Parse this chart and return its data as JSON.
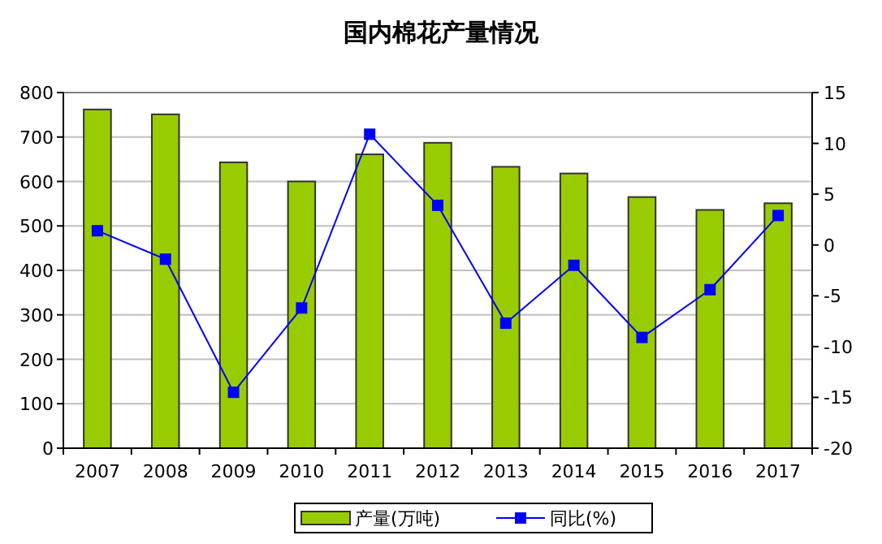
{
  "chart_data": {
    "type": "bar",
    "title": "国内棉花产量情况",
    "categories": [
      "2007",
      "2008",
      "2009",
      "2010",
      "2011",
      "2012",
      "2013",
      "2014",
      "2015",
      "2016",
      "2017"
    ],
    "series": [
      {
        "name": "产量(万吨)",
        "color": "#99cc00",
        "values": [
          762,
          751,
          643,
          600,
          661,
          687,
          633,
          618,
          565,
          536,
          551
        ]
      },
      {
        "name": "同比(%)",
        "type": "line",
        "axis": "y2",
        "color": "#0000ff",
        "marker": "square",
        "values": [
          1.4,
          -1.4,
          -14.5,
          -6.2,
          10.9,
          3.9,
          -7.7,
          -2.0,
          -9.1,
          -4.4,
          2.9
        ]
      }
    ],
    "ylim": [
      0,
      800
    ],
    "yticks": [
      0,
      100,
      200,
      300,
      400,
      500,
      600,
      700,
      800
    ],
    "y2lim": [
      -20,
      15
    ],
    "y2ticks": [
      -20,
      -15,
      -10,
      -5,
      0,
      5,
      10,
      15
    ],
    "grid": "y",
    "legend": "bottom"
  }
}
